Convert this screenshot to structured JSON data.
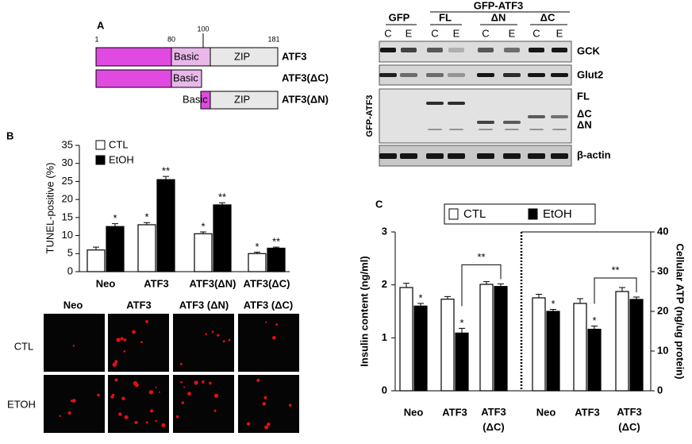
{
  "panel_labels": [
    "A",
    "B",
    "C"
  ],
  "diagram": {
    "positions": [
      "1",
      "80",
      "100",
      "181"
    ],
    "domains": {
      "basic": "Basic",
      "zip": "ZIP"
    },
    "constructs": [
      "ATF3",
      "ATF3(ΔC)",
      "ATF3(ΔN)"
    ]
  },
  "blot": {
    "groups": {
      "gfp": "GFP",
      "gfp_atf3": "GFP-ATF3"
    },
    "constructs": [
      "FL",
      "ΔN",
      "ΔC"
    ],
    "lanes": [
      "C",
      "E"
    ],
    "side_label": "GFP-ATF3",
    "bands": [
      "GCK",
      "Glut2",
      "FL",
      "ΔC",
      "ΔN",
      "β-actin"
    ]
  },
  "images": {
    "columns": [
      "Neo",
      "ATF3",
      "ATF3 (ΔN)",
      "ATF3 (ΔC)"
    ],
    "rows": [
      "CTL",
      "ETOH"
    ]
  },
  "chart_data": [
    {
      "type": "bar",
      "ylabel": "TUNEL-positive (%)",
      "categories": [
        "Neo",
        "ATF3",
        "ATF3(ΔN)",
        "ATF3(ΔC)"
      ],
      "series": [
        {
          "name": "CTL",
          "color": "#ffffff",
          "values": [
            6,
            13,
            10.5,
            5
          ],
          "errors": [
            0.8,
            0.6,
            0.5,
            0.4
          ],
          "annotations": [
            null,
            "*",
            "*",
            "*"
          ]
        },
        {
          "name": "EtOH",
          "color": "#000000",
          "values": [
            12.5,
            25.5,
            18.5,
            6.5
          ],
          "errors": [
            0.8,
            0.9,
            0.6,
            0.3
          ],
          "annotations": [
            "*",
            "**",
            "**",
            "**"
          ]
        }
      ],
      "ylim": [
        0,
        35
      ],
      "yticks": [
        0,
        5,
        10,
        15,
        20,
        25,
        30,
        35
      ]
    },
    {
      "type": "bar",
      "ylabel": "Insulin content (ng/ml)",
      "y2label": "Cellular ATP (ng/ug protein)",
      "categories": [
        "Neo",
        "ATF3",
        "ATF3 (ΔC)"
      ],
      "series": [
        {
          "name": "CTL",
          "color": "#ffffff",
          "values": [
            1.95,
            1.73,
            2.01
          ],
          "errors": [
            0.08,
            0.05,
            0.05
          ]
        },
        {
          "name": "EtOH",
          "color": "#000000",
          "values": [
            1.6,
            1.09,
            1.97
          ],
          "errors": [
            0.05,
            0.09,
            0.05
          ],
          "annotations": [
            "*",
            "*",
            null
          ]
        },
        {
          "axis": "y2",
          "color": "#ffffff",
          "values": [
            23.4,
            22,
            25
          ],
          "errors": [
            0.9,
            1.2,
            1
          ]
        },
        {
          "axis": "y2",
          "color": "#000000",
          "values": [
            20,
            15.5,
            23
          ],
          "errors": [
            0.5,
            0.8,
            0.6
          ],
          "annotations": [
            "*",
            "*",
            null
          ]
        }
      ],
      "bracket_labels": [
        "**",
        "**"
      ],
      "ylim": [
        0,
        3
      ],
      "yticks": [
        0,
        1,
        2,
        3
      ],
      "y2lim": [
        0,
        40
      ],
      "y2ticks": [
        0,
        10,
        20,
        30,
        40
      ]
    }
  ]
}
